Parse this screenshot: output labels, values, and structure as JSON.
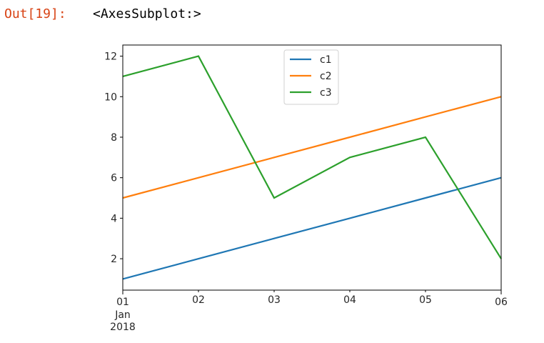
{
  "output": {
    "prompt": "Out[19]:",
    "value": "<AxesSubplot:>"
  },
  "chart_data": {
    "type": "line",
    "x": [
      "2018-01-01",
      "2018-01-02",
      "2018-01-03",
      "2018-01-04",
      "2018-01-05",
      "2018-01-06"
    ],
    "x_tick_labels": [
      "01",
      "02",
      "03",
      "04",
      "05",
      "06"
    ],
    "x_tick_sublabel_month": "Jan",
    "x_tick_sublabel_year": "2018",
    "xlabel": "",
    "ylabel": "",
    "title": "",
    "ylim": [
      0.45,
      12.55
    ],
    "y_ticks": [
      2,
      4,
      6,
      8,
      10,
      12
    ],
    "series": [
      {
        "name": "c1",
        "values": [
          1,
          2,
          3,
          4,
          5,
          6
        ],
        "color": "#1f77b4"
      },
      {
        "name": "c2",
        "values": [
          5,
          6,
          7,
          8,
          9,
          10
        ],
        "color": "#ff7f0e"
      },
      {
        "name": "c3",
        "values": [
          11,
          12,
          5,
          7,
          8,
          2
        ],
        "color": "#2ca02c"
      }
    ],
    "legend_position": "upper center",
    "grid": false
  }
}
